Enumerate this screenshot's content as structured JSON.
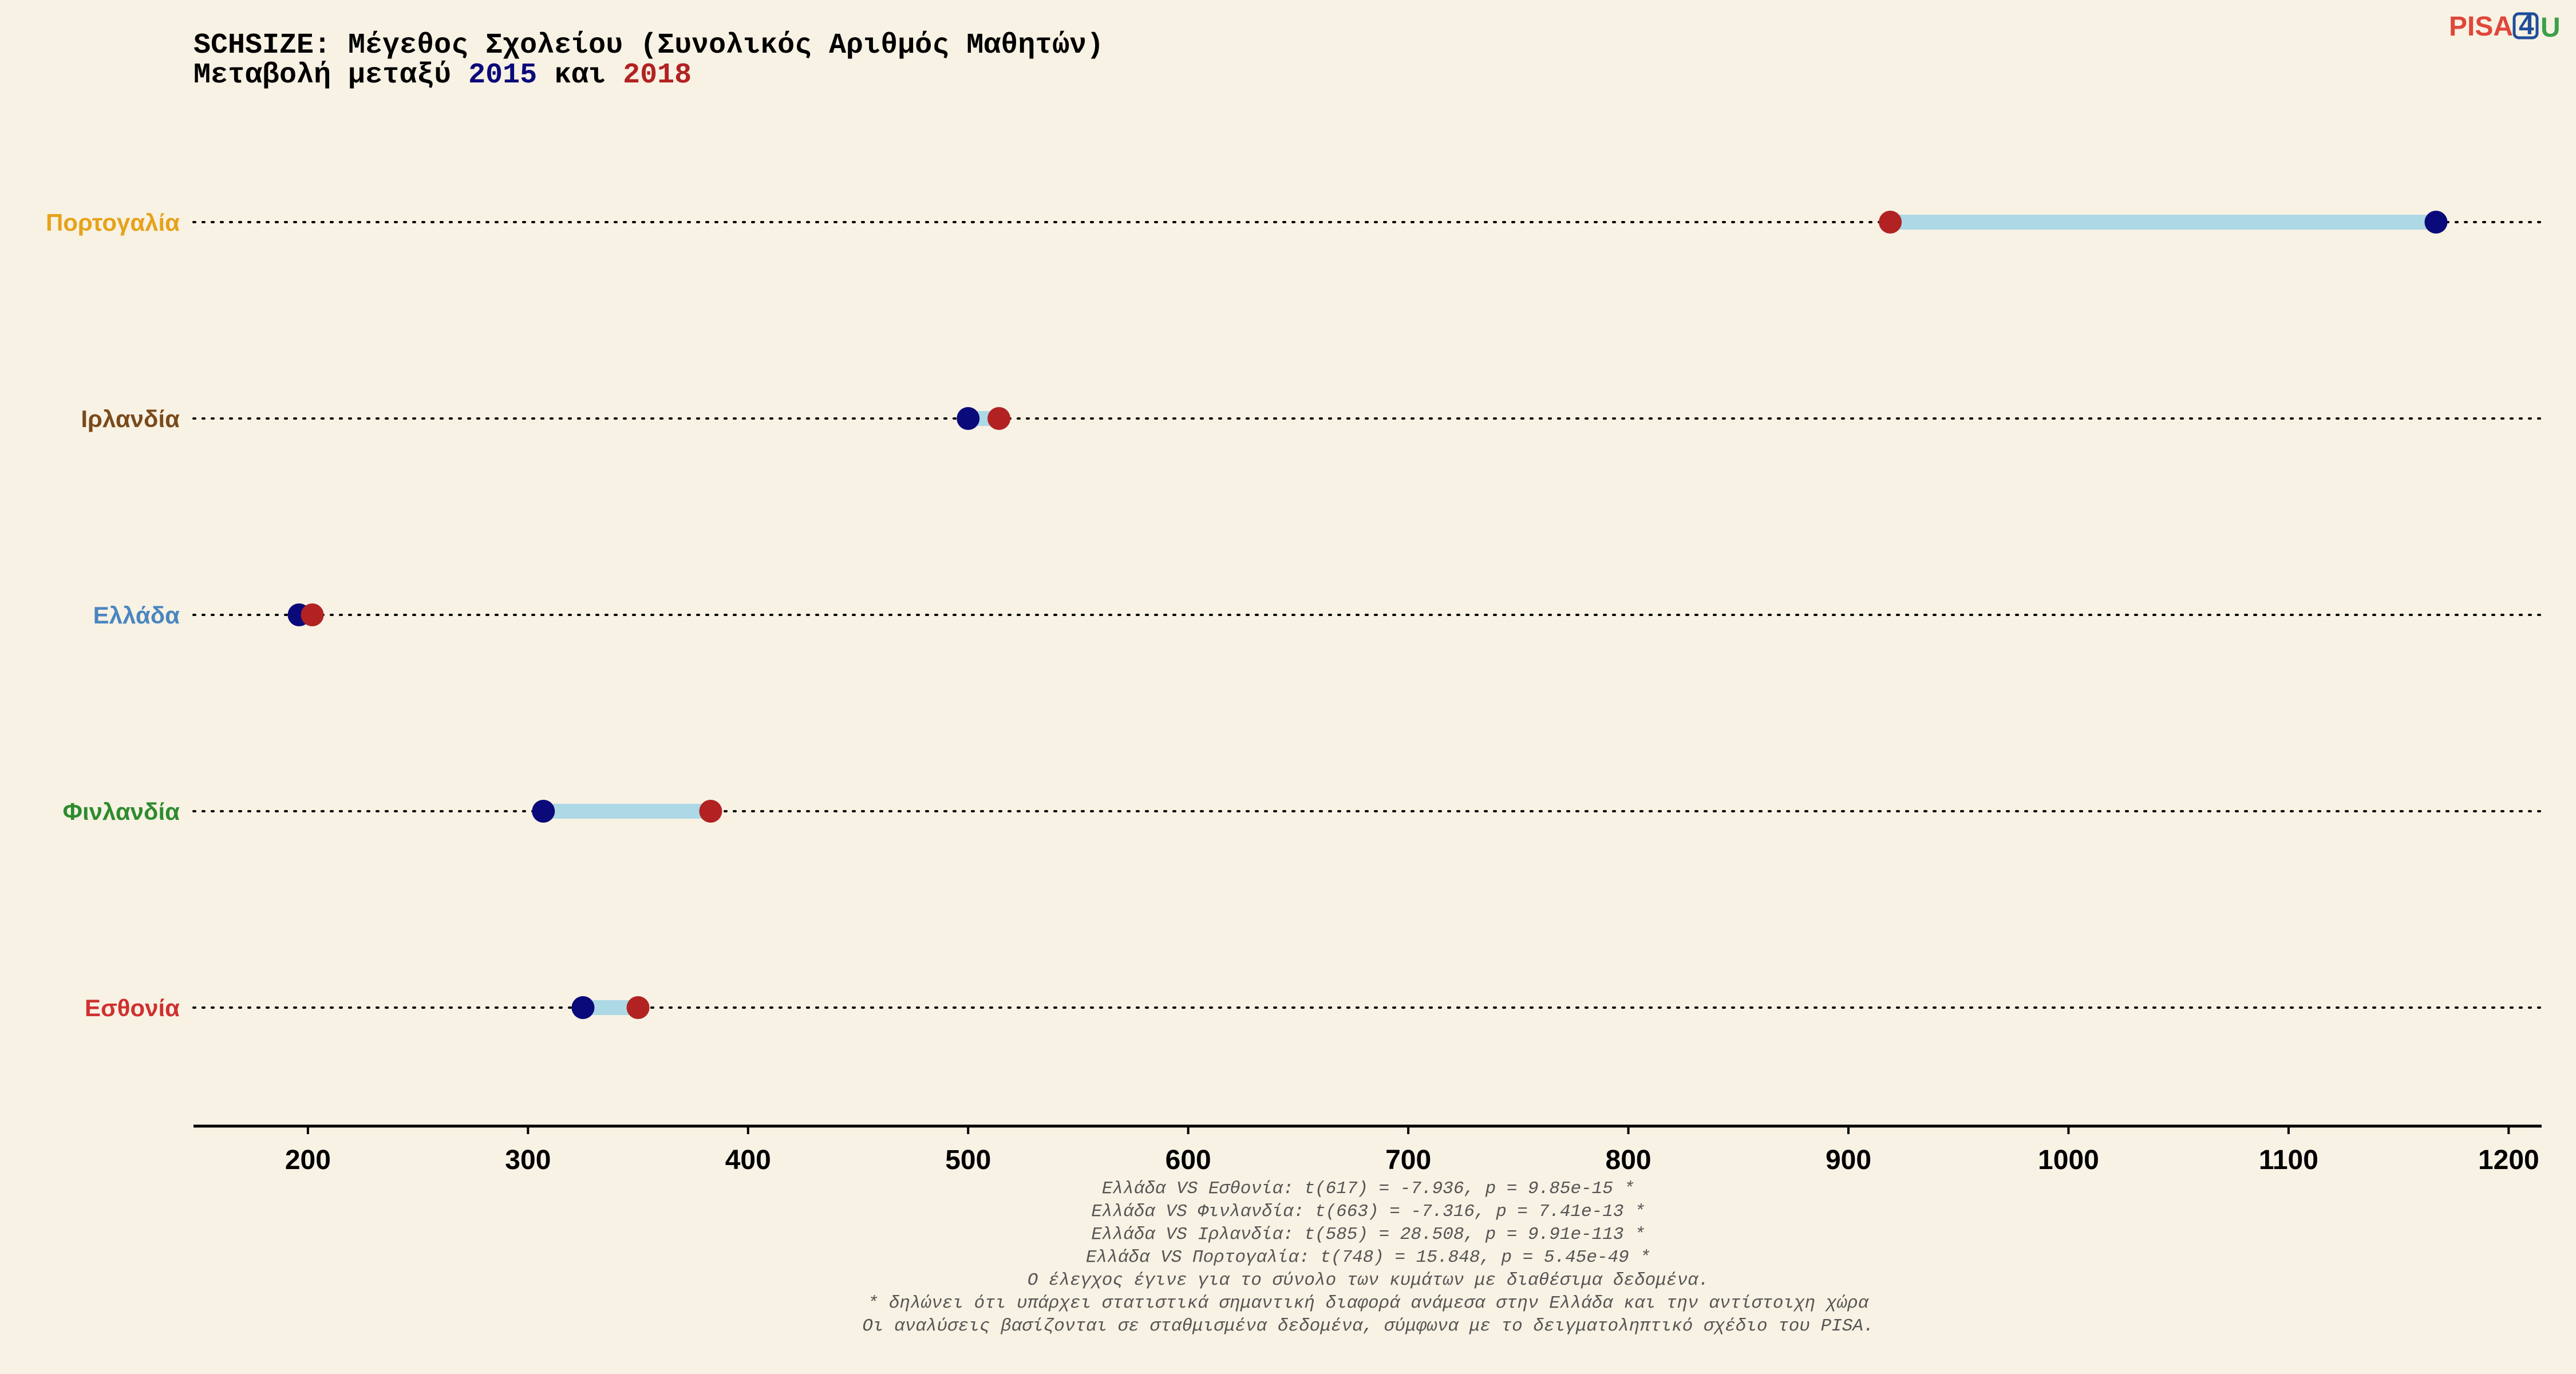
{
  "logo": {
    "text_left": "PISA",
    "text_box": "4",
    "text_right": "U",
    "colors": {
      "left": "#e0463a",
      "box": "#1f4e99",
      "right": "#3aa04a"
    }
  },
  "chart_data": {
    "type": "dumbbell",
    "title_line1": "SCHSIZE: Μέγεθος Σχολείου (Συνολικός Αριθμός Μαθητών)",
    "title_line2_prefix": "Μεταβολή μεταξύ ",
    "title_year1": "2015",
    "title_mid": " και ",
    "title_year2": "2018",
    "xlim": [
      148,
      1215
    ],
    "xticks": [
      "200",
      "300",
      "400",
      "500",
      "600",
      "700",
      "800",
      "900",
      "1000",
      "1100",
      "1200"
    ],
    "series": [
      {
        "name": "2015",
        "color": "#0a0a7a"
      },
      {
        "name": "2018",
        "color": "#b22222"
      }
    ],
    "connector_color": "#add8e6",
    "categories": [
      {
        "label": "Πορτογαλία",
        "color": "#e6a21a",
        "v2015": 1167,
        "v2018": 919
      },
      {
        "label": "Ιρλανδία",
        "color": "#7a4a1c",
        "v2015": 500,
        "v2018": 514
      },
      {
        "label": "Ελλάδα",
        "color": "#4a86c0",
        "v2015": 196,
        "v2018": 202
      },
      {
        "label": "Φινλανδία",
        "color": "#2e8b2e",
        "v2015": 307,
        "v2018": 383
      },
      {
        "label": "Εσθονία",
        "color": "#d03030",
        "v2015": 325,
        "v2018": 350
      }
    ],
    "notes": [
      "Ελλάδα VS Εσθονία: t(617) = -7.936, p = 9.85e-15 *",
      "Ελλάδα VS Φινλανδία: t(663) = -7.316, p = 7.41e-13 *",
      "Ελλάδα VS Ιρλανδία: t(585) = 28.508, p = 9.91e-113 *",
      "Ελλάδα VS Πορτογαλία: t(748) = 15.848, p = 5.45e-49 *",
      "Ο έλεγχος έγινε για το σύνολο των κυμάτων με διαθέσιμα δεδομένα.",
      "* δηλώνει ότι υπάρχει στατιστικά σημαντική διαφορά ανάμεσα στην Ελλάδα και την αντίστοιχη χώρα",
      "Οι αναλύσεις βασίζονται σε σταθμισμένα δεδομένα, σύμφωνα με το δειγματοληπτικό σχέδιο του PISA."
    ]
  }
}
